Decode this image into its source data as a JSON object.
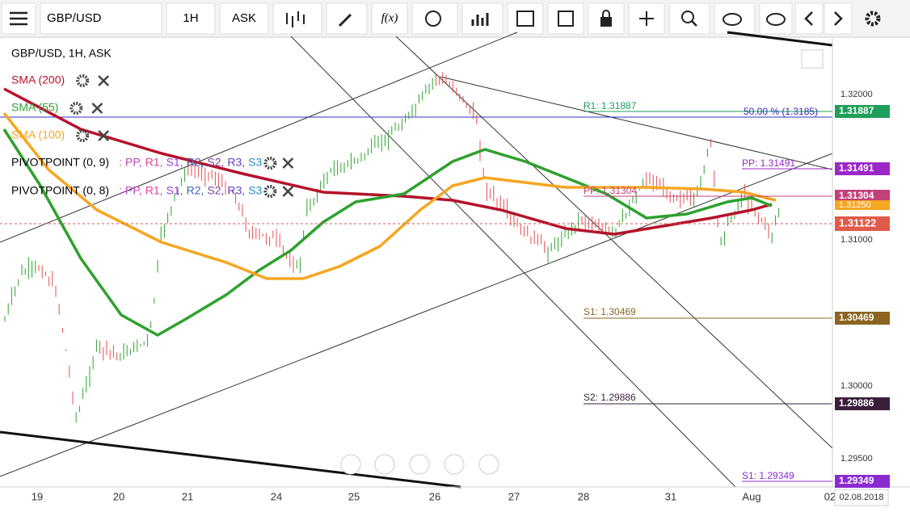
{
  "toolbar": {
    "symbol": "GBP/USD",
    "timeframe": "1H",
    "price_type": "ASK",
    "function": "f(x)"
  },
  "legend": {
    "title": "GBP/USD, 1H, ASK",
    "indicators": [
      {
        "name": "SMA (200)",
        "color": "#b5122b"
      },
      {
        "name": "SMA (55)",
        "color": "#2ea12e"
      },
      {
        "name": "SMA (100)",
        "color": "#f5a623"
      }
    ],
    "pivots": [
      {
        "name": "PIVOTPOINT (0, 9)",
        "prefix": ":",
        "levels": [
          "PP,",
          "R1,",
          "S1,",
          "R2,",
          "S2,",
          "R3,",
          "S3"
        ]
      },
      {
        "name": "PIVOTPOINT (0, 8)",
        "prefix": ":",
        "levels": [
          "PP,",
          "R1,",
          "S1,",
          "R2,",
          "S2,",
          "R3,",
          "S3"
        ]
      }
    ]
  },
  "price_axis": {
    "labels": [
      "1.32000",
      "1.31000",
      "1.30000",
      "1.29500"
    ]
  },
  "time_axis": {
    "labels": [
      "19",
      "20",
      "21",
      "24",
      "25",
      "26",
      "27",
      "28",
      "31",
      "Aug",
      "02"
    ],
    "date": "02.08.2018"
  },
  "levels": [
    {
      "label": "R1: 1.31887",
      "tag": "1.31887",
      "color": "#1e9e5a"
    },
    {
      "label": "PP: 1.31491",
      "tag": "1.31491",
      "color": "#9b27c9"
    },
    {
      "label": "PP: 1.31304",
      "tag": "1.31304",
      "color": "#c2407a"
    },
    {
      "label": "S1: 1.30469",
      "tag": "1.30469",
      "color": "#8a6420"
    },
    {
      "label": "S2: 1.29886",
      "tag": "1.29886",
      "color": "#3a1f3a"
    },
    {
      "label": "S1: 1.29349",
      "tag": "1.29349",
      "color": "#8a2bd0"
    }
  ],
  "fib_label": "50.00 % (1.3185)",
  "sma_tag": "1.31250",
  "current_price": "1.31122"
}
